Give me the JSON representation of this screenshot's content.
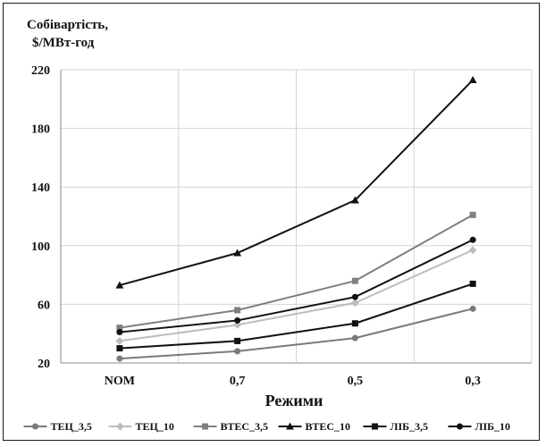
{
  "chart_data": {
    "type": "line",
    "title_lines": [
      "Собівартість,",
      "$/МВт-год"
    ],
    "xlabel": "Режими",
    "ylabel": "",
    "categories": [
      "NOM",
      "0,7",
      "0,5",
      "0,3"
    ],
    "ylim": [
      20,
      220
    ],
    "yticks": [
      20,
      60,
      100,
      140,
      180,
      220
    ],
    "grid": true,
    "legend_position": "bottom",
    "series": [
      {
        "name": "ТЕЦ_3,5",
        "color": "#7a7a7a",
        "marker": "circle",
        "values": [
          23,
          28,
          37,
          57
        ]
      },
      {
        "name": "ТЕЦ_10",
        "color": "#bdbdbd",
        "marker": "diamond",
        "values": [
          35,
          46,
          61,
          97
        ]
      },
      {
        "name": "ВТЕС_3,5",
        "color": "#808080",
        "marker": "square",
        "values": [
          44,
          56,
          76,
          121
        ]
      },
      {
        "name": "ВТЕС_10",
        "color": "#111111",
        "marker": "triangle",
        "values": [
          73,
          95,
          131,
          213
        ]
      },
      {
        "name": "ЛІБ_3,5",
        "color": "#111111",
        "marker": "square",
        "values": [
          30,
          35,
          47,
          74
        ]
      },
      {
        "name": "ЛІБ_10",
        "color": "#111111",
        "marker": "circle",
        "values": [
          41,
          49,
          65,
          104
        ]
      }
    ]
  }
}
